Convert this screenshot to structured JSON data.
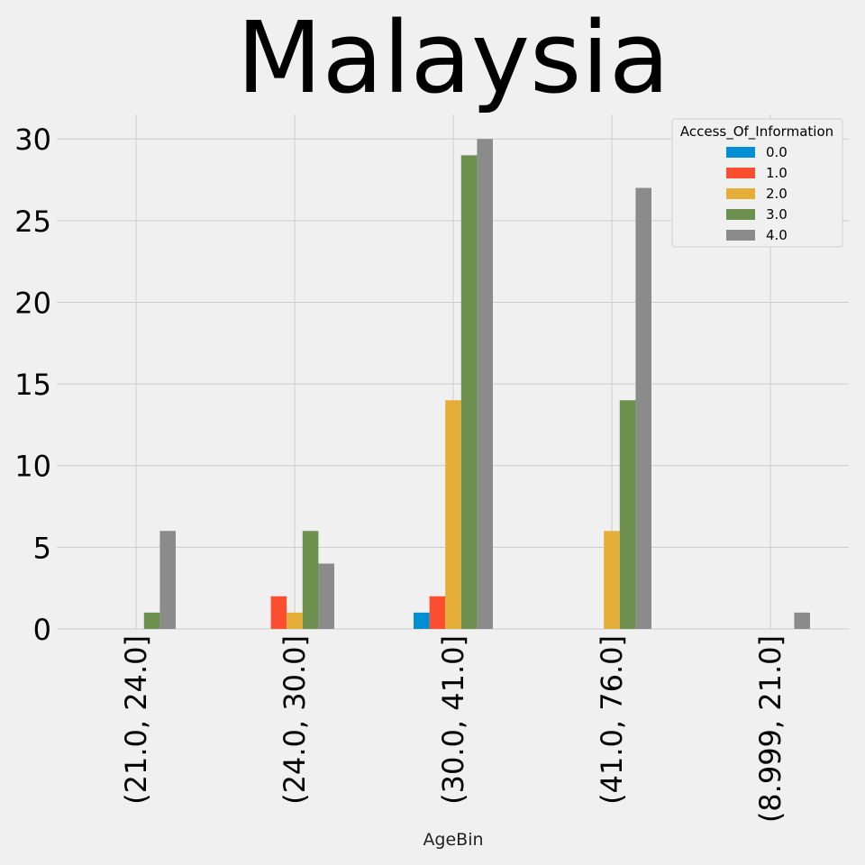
{
  "chart_data": {
    "type": "bar",
    "title": "Malaysia",
    "xlabel": "AgeBin",
    "ylabel": "",
    "categories": [
      "(21.0, 24.0]",
      "(24.0, 30.0]",
      "(30.0, 41.0]",
      "(41.0, 76.0]",
      "(8.999, 21.0]"
    ],
    "series": [
      {
        "name": "0.0",
        "color": "#008fd5",
        "values": [
          0,
          0,
          1,
          0,
          0
        ]
      },
      {
        "name": "1.0",
        "color": "#fc4f30",
        "values": [
          0,
          2,
          2,
          0,
          0
        ]
      },
      {
        "name": "2.0",
        "color": "#e5ae38",
        "values": [
          0,
          1,
          14,
          6,
          0
        ]
      },
      {
        "name": "3.0",
        "color": "#6d904f",
        "values": [
          1,
          6,
          29,
          14,
          0
        ]
      },
      {
        "name": "4.0",
        "color": "#8b8b8b",
        "values": [
          6,
          4,
          30,
          27,
          1
        ]
      }
    ],
    "ylim": [
      0,
      31.5
    ],
    "yticks": [
      0,
      5,
      10,
      15,
      20,
      25,
      30
    ],
    "grid": true,
    "legend": {
      "title": "Access_Of_Information",
      "placement": "top-right"
    }
  }
}
